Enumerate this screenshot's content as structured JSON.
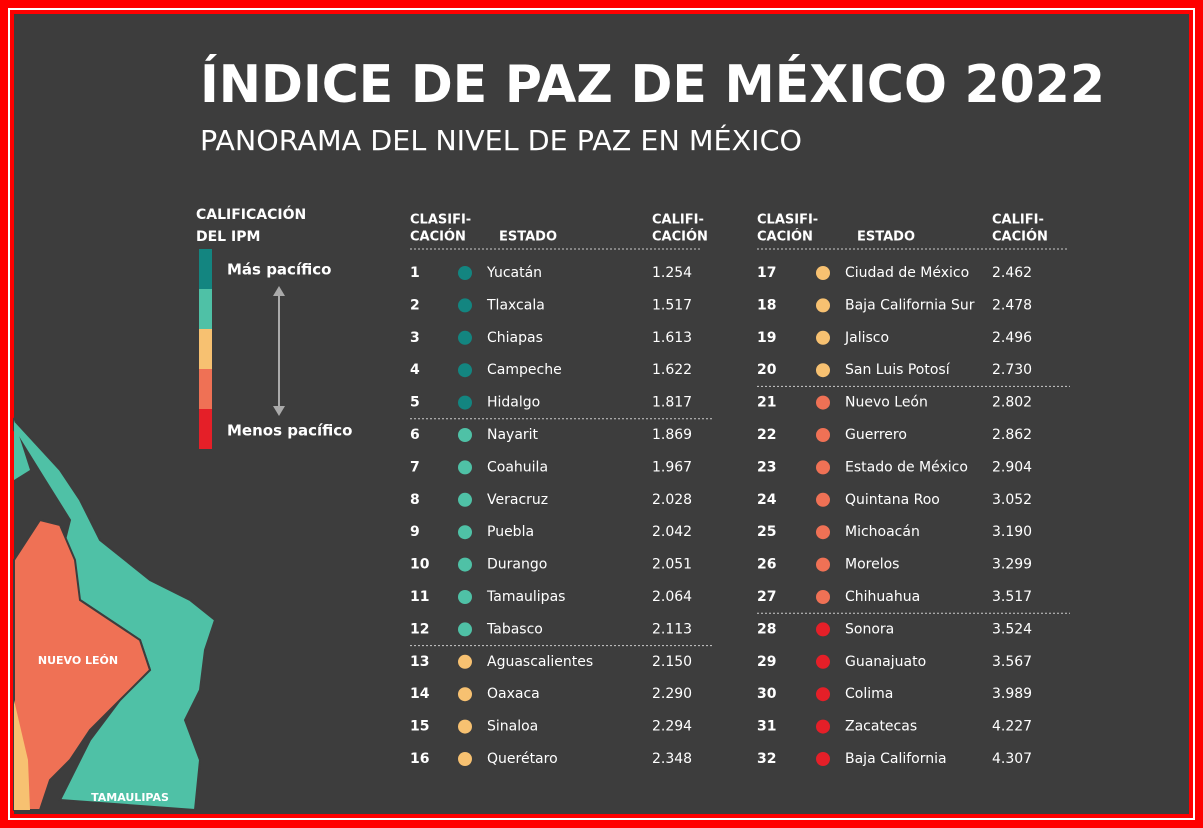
{
  "header": {
    "title": "ÍNDICE DE PAZ DE MÉXICO 2022",
    "subtitle": "PANORAMA DEL NIVEL DE PAZ EN MÉXICO"
  },
  "legend": {
    "title": [
      "CALIFICACIÓN",
      "DEL IPM"
    ],
    "top": "Más pacífico",
    "bottom": "Menos pacífico",
    "colors": [
      "#138580",
      "#4fc1a6",
      "#f7c171",
      "#ef7155",
      "#e51f28"
    ]
  },
  "map": {
    "labels": [
      "NUEVO LEÓN",
      "TAMAULIPAS"
    ]
  },
  "table": {
    "headers": [
      [
        "CLASIFI-",
        "CACIÓN"
      ],
      [
        "ESTADO"
      ],
      [
        "CALIFI-",
        "CACIÓN"
      ]
    ],
    "rows": [
      [
        1,
        "Yucatán",
        "1.254",
        "#138580"
      ],
      [
        2,
        "Tlaxcala",
        "1.517",
        "#138580"
      ],
      [
        3,
        "Chiapas",
        "1.613",
        "#138580"
      ],
      [
        4,
        "Campeche",
        "1.622",
        "#138580"
      ],
      [
        5,
        "Hidalgo",
        "1.817",
        "#138580"
      ],
      [
        6,
        "Nayarit",
        "1.869",
        "#4fc1a6"
      ],
      [
        7,
        "Coahuila",
        "1.967",
        "#4fc1a6"
      ],
      [
        8,
        "Veracruz",
        "2.028",
        "#4fc1a6"
      ],
      [
        9,
        "Puebla",
        "2.042",
        "#4fc1a6"
      ],
      [
        10,
        "Durango",
        "2.051",
        "#4fc1a6"
      ],
      [
        11,
        "Tamaulipas",
        "2.064",
        "#4fc1a6"
      ],
      [
        12,
        "Tabasco",
        "2.113",
        "#4fc1a6"
      ],
      [
        13,
        "Aguascalientes",
        "2.150",
        "#f7c171"
      ],
      [
        14,
        "Oaxaca",
        "2.290",
        "#f7c171"
      ],
      [
        15,
        "Sinaloa",
        "2.294",
        "#f7c171"
      ],
      [
        16,
        "Querétaro",
        "2.348",
        "#f7c171"
      ],
      [
        17,
        "Ciudad de México",
        "2.462",
        "#f7c171"
      ],
      [
        18,
        "Baja California Sur",
        "2.478",
        "#f7c171"
      ],
      [
        19,
        "Jalisco",
        "2.496",
        "#f7c171"
      ],
      [
        20,
        "San Luis Potosí",
        "2.730",
        "#f7c171"
      ],
      [
        21,
        "Nuevo León",
        "2.802",
        "#ef7155"
      ],
      [
        22,
        "Guerrero",
        "2.862",
        "#ef7155"
      ],
      [
        23,
        "Estado de México",
        "2.904",
        "#ef7155"
      ],
      [
        24,
        "Quintana Roo",
        "3.052",
        "#ef7155"
      ],
      [
        25,
        "Michoacán",
        "3.190",
        "#ef7155"
      ],
      [
        26,
        "Morelos",
        "3.299",
        "#ef7155"
      ],
      [
        27,
        "Chihuahua",
        "3.517",
        "#ef7155"
      ],
      [
        28,
        "Sonora",
        "3.524",
        "#e51f28"
      ],
      [
        29,
        "Guanajuato",
        "3.567",
        "#e51f28"
      ],
      [
        30,
        "Colima",
        "3.989",
        "#e51f28"
      ],
      [
        31,
        "Zacatecas",
        "4.227",
        "#e51f28"
      ],
      [
        32,
        "Baja California",
        "4.307",
        "#e51f28"
      ]
    ]
  }
}
